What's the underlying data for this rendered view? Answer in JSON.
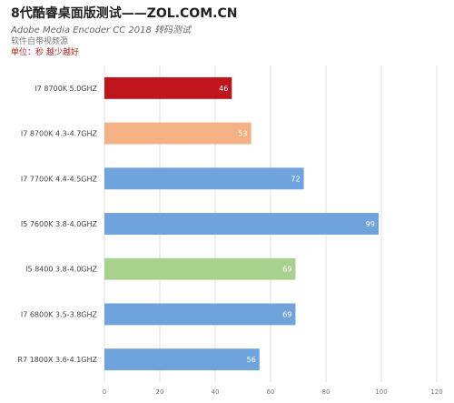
{
  "header": {
    "title": "8代酷睿桌面版测试——ZOL.COM.CN",
    "subtitle": "Adobe Media Encoder CC 2018 转码测试",
    "note": "软件自带视频源",
    "unit": "单位：秒 越少越好"
  },
  "chart_data": {
    "type": "bar",
    "orientation": "horizontal",
    "categories": [
      "I7 8700K 5.0GHZ",
      "I7 8700K 4.3-4.7GHZ",
      "I7 7700K 4.4-4.5GHZ",
      "I5 7600K 3.8-4.0GHZ",
      "I5 8400 3.8-4.0GHZ",
      "I7 6800K 3.5-3.8GHZ",
      "R7 1800X 3.6-4.1GHZ"
    ],
    "values": [
      46,
      53,
      72,
      99,
      69,
      69,
      56
    ],
    "colors": [
      "#c0141c",
      "#f4b183",
      "#6fa3dc",
      "#6fa3dc",
      "#a9d18e",
      "#6fa3dc",
      "#6fa3dc"
    ],
    "xlim": [
      0,
      120
    ],
    "xticks": [
      0,
      20,
      40,
      60,
      80,
      100,
      120
    ],
    "grid": true
  }
}
